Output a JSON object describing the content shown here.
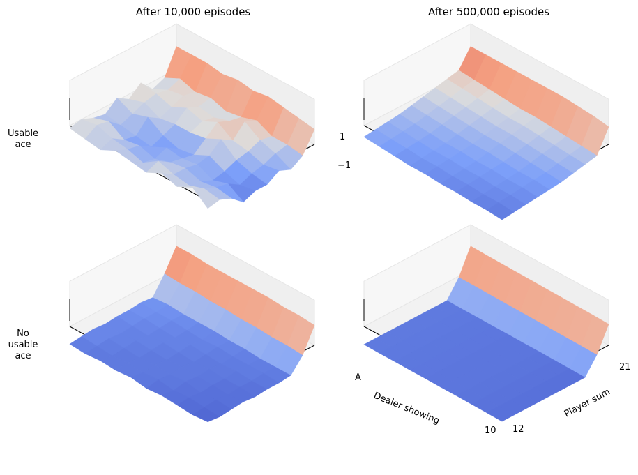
{
  "chart_data": {
    "type": "surface",
    "colormap": "coolwarm",
    "zlim": [
      -1,
      1
    ],
    "x_axis": {
      "label": "Dealer showing",
      "tick_labels": [
        "A",
        "10"
      ],
      "range": [
        1,
        10
      ]
    },
    "y_axis": {
      "label": "Player sum",
      "tick_labels": [
        "12",
        "21"
      ],
      "range": [
        12,
        21
      ]
    },
    "z_axis": {
      "tick_labels": [
        "1",
        "−1"
      ]
    },
    "columns": [
      "After 10,000 episodes",
      "After 500,000 episodes"
    ],
    "rows": [
      "Usable\nace",
      "No\nusable\nace"
    ],
    "panels": [
      {
        "column": "After 10,000 episodes",
        "row": "Usable ace",
        "grid": [
          [
            -0.1,
            0.0,
            -0.2,
            -0.3,
            0.1,
            -0.2,
            0.2,
            -0.3,
            -0.1,
            0.9
          ],
          [
            -0.2,
            0.1,
            0.0,
            -0.4,
            -0.2,
            0.0,
            0.1,
            0.0,
            0.2,
            0.9
          ],
          [
            -0.3,
            -0.1,
            -0.4,
            -0.5,
            0.0,
            -0.3,
            -0.1,
            0.1,
            0.0,
            0.9
          ],
          [
            0.0,
            -0.2,
            -0.3,
            -0.6,
            -0.4,
            -0.2,
            0.2,
            0.0,
            0.1,
            0.8
          ],
          [
            -0.1,
            -0.4,
            -0.5,
            -0.3,
            -0.6,
            -0.2,
            0.0,
            -0.1,
            -0.1,
            0.9
          ],
          [
            -0.2,
            0.0,
            -0.3,
            -0.4,
            -0.5,
            -0.1,
            0.3,
            0.1,
            0.0,
            0.8
          ],
          [
            0.1,
            -0.2,
            -0.2,
            -0.3,
            -0.2,
            0.2,
            -0.1,
            0.4,
            0.2,
            0.9
          ],
          [
            -0.1,
            -0.3,
            -0.4,
            -0.6,
            -0.5,
            -0.3,
            -0.2,
            0.0,
            -0.1,
            0.8
          ],
          [
            0.2,
            -0.1,
            -0.3,
            -0.4,
            -0.7,
            -0.5,
            -0.4,
            -0.2,
            -0.1,
            0.7
          ],
          [
            -0.3,
            -0.2,
            -0.4,
            -0.8,
            -0.6,
            -0.6,
            -0.3,
            -0.5,
            -0.2,
            0.6
          ]
        ]
      },
      {
        "column": "After 500,000 episodes",
        "row": "Usable ace",
        "grid": [
          [
            -0.45,
            -0.4,
            -0.35,
            -0.3,
            -0.2,
            -0.1,
            0.0,
            0.1,
            0.2,
            0.9
          ],
          [
            -0.5,
            -0.45,
            -0.4,
            -0.35,
            -0.25,
            -0.15,
            -0.05,
            0.05,
            0.15,
            0.9
          ],
          [
            -0.55,
            -0.5,
            -0.45,
            -0.4,
            -0.3,
            -0.2,
            -0.1,
            0.0,
            0.1,
            0.9
          ],
          [
            -0.6,
            -0.55,
            -0.5,
            -0.45,
            -0.35,
            -0.25,
            -0.15,
            -0.05,
            0.05,
            0.9
          ],
          [
            -0.6,
            -0.55,
            -0.5,
            -0.45,
            -0.4,
            -0.3,
            -0.2,
            -0.1,
            0.0,
            0.9
          ],
          [
            -0.65,
            -0.6,
            -0.55,
            -0.5,
            -0.4,
            -0.3,
            -0.2,
            -0.1,
            0.0,
            0.9
          ],
          [
            -0.65,
            -0.6,
            -0.55,
            -0.5,
            -0.45,
            -0.35,
            -0.25,
            -0.15,
            -0.05,
            0.9
          ],
          [
            -0.7,
            -0.65,
            -0.6,
            -0.55,
            -0.5,
            -0.4,
            -0.3,
            -0.2,
            -0.1,
            0.85
          ],
          [
            -0.7,
            -0.65,
            -0.6,
            -0.55,
            -0.5,
            -0.45,
            -0.35,
            -0.25,
            -0.15,
            0.8
          ],
          [
            -0.75,
            -0.7,
            -0.65,
            -0.6,
            -0.55,
            -0.5,
            -0.4,
            -0.3,
            -0.2,
            0.7
          ]
        ]
      },
      {
        "column": "After 10,000 episodes",
        "row": "No usable ace",
        "grid": [
          [
            -0.7,
            -0.65,
            -0.6,
            -0.65,
            -0.6,
            -0.6,
            -0.55,
            -0.6,
            0.1,
            0.95
          ],
          [
            -0.75,
            -0.7,
            -0.65,
            -0.7,
            -0.65,
            -0.6,
            -0.6,
            -0.55,
            0.05,
            0.95
          ],
          [
            -0.7,
            -0.75,
            -0.7,
            -0.65,
            -0.7,
            -0.65,
            -0.6,
            -0.6,
            0.05,
            0.9
          ],
          [
            -0.75,
            -0.7,
            -0.75,
            -0.7,
            -0.65,
            -0.7,
            -0.65,
            -0.6,
            0.0,
            0.9
          ],
          [
            -0.7,
            -0.75,
            -0.7,
            -0.75,
            -0.7,
            -0.65,
            -0.7,
            -0.6,
            0.0,
            0.9
          ],
          [
            -0.8,
            -0.7,
            -0.75,
            -0.7,
            -0.75,
            -0.7,
            -0.65,
            -0.65,
            -0.05,
            0.9
          ],
          [
            -0.75,
            -0.8,
            -0.7,
            -0.75,
            -0.7,
            -0.75,
            -0.7,
            -0.65,
            -0.05,
            0.9
          ],
          [
            -0.8,
            -0.75,
            -0.8,
            -0.75,
            -0.75,
            -0.7,
            -0.7,
            -0.7,
            -0.1,
            0.85
          ],
          [
            -0.85,
            -0.8,
            -0.75,
            -0.8,
            -0.75,
            -0.75,
            -0.7,
            -0.7,
            -0.1,
            0.85
          ],
          [
            -0.8,
            -0.85,
            -0.8,
            -0.75,
            -0.8,
            -0.75,
            -0.75,
            -0.7,
            -0.15,
            0.8
          ]
        ]
      },
      {
        "column": "After 500,000 episodes",
        "row": "No usable ace",
        "grid": [
          [
            -0.72,
            -0.72,
            -0.72,
            -0.72,
            -0.72,
            -0.72,
            -0.72,
            -0.72,
            -0.05,
            0.95
          ],
          [
            -0.73,
            -0.73,
            -0.73,
            -0.73,
            -0.73,
            -0.73,
            -0.73,
            -0.73,
            -0.05,
            0.93
          ],
          [
            -0.73,
            -0.73,
            -0.73,
            -0.73,
            -0.73,
            -0.73,
            -0.73,
            -0.73,
            -0.06,
            0.92
          ],
          [
            -0.74,
            -0.74,
            -0.74,
            -0.74,
            -0.74,
            -0.74,
            -0.74,
            -0.74,
            -0.07,
            0.91
          ],
          [
            -0.74,
            -0.74,
            -0.74,
            -0.74,
            -0.74,
            -0.74,
            -0.74,
            -0.74,
            -0.08,
            0.9
          ],
          [
            -0.75,
            -0.75,
            -0.75,
            -0.75,
            -0.75,
            -0.75,
            -0.75,
            -0.75,
            -0.09,
            0.89
          ],
          [
            -0.75,
            -0.75,
            -0.75,
            -0.75,
            -0.75,
            -0.75,
            -0.75,
            -0.75,
            -0.1,
            0.88
          ],
          [
            -0.76,
            -0.76,
            -0.76,
            -0.76,
            -0.76,
            -0.76,
            -0.76,
            -0.76,
            -0.11,
            0.87
          ],
          [
            -0.77,
            -0.77,
            -0.77,
            -0.77,
            -0.77,
            -0.77,
            -0.77,
            -0.77,
            -0.12,
            0.86
          ],
          [
            -0.78,
            -0.78,
            -0.78,
            -0.78,
            -0.78,
            -0.78,
            -0.78,
            -0.78,
            -0.13,
            0.84
          ]
        ]
      }
    ]
  }
}
